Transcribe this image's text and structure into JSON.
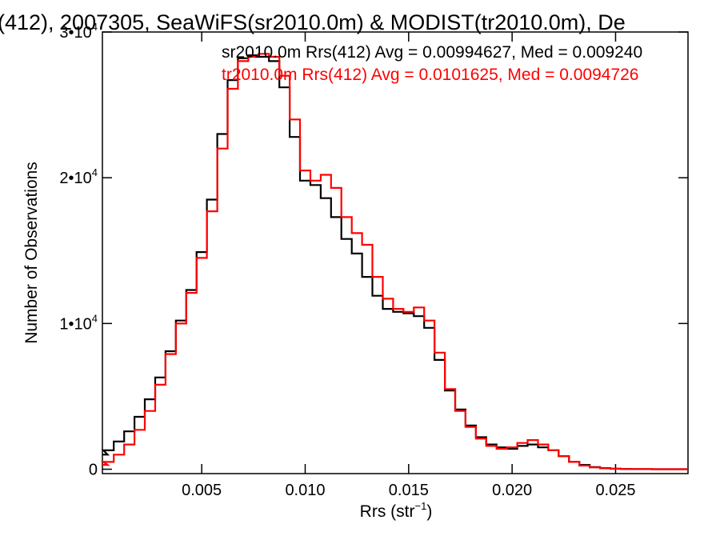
{
  "chart_data": {
    "type": "line",
    "title": "(412), 2007305, SeaWiFS(sr2010.0m) & MODIST(tr2010.0m), De",
    "xlabel_base": "Rrs (str",
    "xlabel_sup": "−1",
    "xlabel_close": ")",
    "ylabel": "Number of Observations",
    "xlim": [
      0.0002,
      0.0285
    ],
    "ylim": [
      -300,
      30000
    ],
    "x_ticks": [
      {
        "value": 0.005,
        "label": "0.005"
      },
      {
        "value": 0.01,
        "label": "0.010"
      },
      {
        "value": 0.015,
        "label": "0.015"
      },
      {
        "value": 0.02,
        "label": "0.020"
      },
      {
        "value": 0.025,
        "label": "0.025"
      }
    ],
    "y_ticks": [
      {
        "value": 0,
        "base": "0",
        "exp": ""
      },
      {
        "value": 10000,
        "base": "1•10",
        "exp": "4"
      },
      {
        "value": 20000,
        "base": "2•10",
        "exp": "4"
      },
      {
        "value": 30000,
        "base": "3•10",
        "exp": "4"
      }
    ],
    "series": [
      {
        "name": "sr2010.0m Rrs(412) Avg = 0.00994627, Med = 0.009240",
        "color": "#000000",
        "x": [
          0.0002,
          0.0005,
          0.001,
          0.0015,
          0.002,
          0.0025,
          0.003,
          0.0035,
          0.004,
          0.0045,
          0.005,
          0.0055,
          0.006,
          0.0065,
          0.007,
          0.0075,
          0.008,
          0.0085,
          0.009,
          0.0095,
          0.01,
          0.0105,
          0.011,
          0.0115,
          0.012,
          0.0125,
          0.013,
          0.0135,
          0.014,
          0.0145,
          0.015,
          0.0155,
          0.016,
          0.0165,
          0.017,
          0.0175,
          0.018,
          0.0185,
          0.019,
          0.0195,
          0.02,
          0.0205,
          0.021,
          0.0215,
          0.022,
          0.0225,
          0.023,
          0.0235,
          0.024,
          0.0245,
          0.025,
          0.0255,
          0.026,
          0.0265,
          0.027,
          0.0275,
          0.028,
          0.0285
        ],
        "y": [
          1000,
          1300,
          1900,
          2600,
          3600,
          4800,
          6300,
          8100,
          10200,
          12300,
          14900,
          18500,
          23000,
          26700,
          28200,
          28400,
          28300,
          28000,
          26200,
          22800,
          19800,
          19500,
          18600,
          17300,
          15800,
          14800,
          13200,
          11900,
          11000,
          10800,
          10700,
          10500,
          9700,
          7500,
          5400,
          4100,
          3000,
          2200,
          1700,
          1500,
          1400,
          1600,
          1700,
          1500,
          1300,
          900,
          500,
          300,
          150,
          80,
          40,
          20,
          10,
          5,
          0,
          0,
          0,
          0
        ]
      },
      {
        "name": "tr2010.0m Rrs(412) Avg = 0.0101625, Med = 0.0094726",
        "color": "#ff0000",
        "x": [
          0.0002,
          0.0005,
          0.001,
          0.0015,
          0.002,
          0.0025,
          0.003,
          0.0035,
          0.004,
          0.0045,
          0.005,
          0.0055,
          0.006,
          0.0065,
          0.007,
          0.0075,
          0.008,
          0.0085,
          0.009,
          0.0095,
          0.01,
          0.0105,
          0.011,
          0.0115,
          0.012,
          0.0125,
          0.013,
          0.0135,
          0.014,
          0.0145,
          0.015,
          0.0155,
          0.016,
          0.0165,
          0.017,
          0.0175,
          0.018,
          0.0185,
          0.019,
          0.0195,
          0.02,
          0.0205,
          0.021,
          0.0215,
          0.022,
          0.0225,
          0.023,
          0.0235,
          0.024,
          0.0245,
          0.025,
          0.0255,
          0.026,
          0.0265,
          0.027,
          0.0275,
          0.028,
          0.0285
        ],
        "y": [
          300,
          500,
          1000,
          1700,
          2700,
          4000,
          5800,
          7900,
          10000,
          12100,
          14500,
          17700,
          22000,
          26100,
          28000,
          28300,
          28500,
          28300,
          27000,
          24000,
          20500,
          19800,
          20200,
          19300,
          17300,
          16200,
          15400,
          13200,
          11700,
          11000,
          10800,
          11100,
          10200,
          8000,
          5500,
          4000,
          2900,
          2100,
          1600,
          1400,
          1500,
          1800,
          2000,
          1700,
          1300,
          900,
          500,
          250,
          120,
          60,
          30,
          15,
          10,
          5,
          0,
          0,
          0,
          0
        ]
      }
    ],
    "grid": false,
    "legend_position": "top-right, text only"
  }
}
